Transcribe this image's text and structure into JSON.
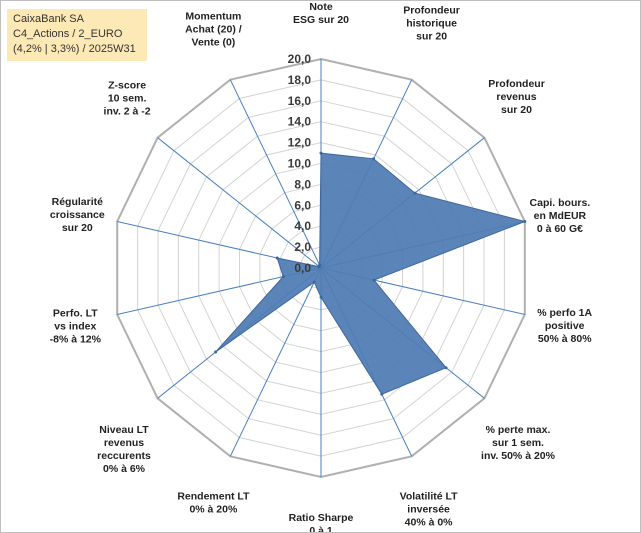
{
  "header": {
    "line1": "CaixaBank SA",
    "line2": "C4_Actions / 2_EURO",
    "line3": "(4,2% | 3,3%) / 2025W31"
  },
  "chart_data": {
    "type": "radar",
    "r_min": 0,
    "r_max": 20,
    "ticks": [
      "0,0",
      "2,0",
      "4,0",
      "6,0",
      "8,0",
      "10,0",
      "12,0",
      "14,0",
      "16,0",
      "18,0",
      "20,0"
    ],
    "axes": [
      [
        "Note",
        "ESG sur 20"
      ],
      [
        "Profondeur",
        "historique",
        "sur 20"
      ],
      [
        "Profondeur",
        "revenus",
        "sur 20"
      ],
      [
        "Capi. bours.",
        "en MdEUR",
        "0 à 60 G€"
      ],
      [
        "% perfo 1A",
        "positive",
        "50% à 80%"
      ],
      [
        "% perte max.",
        "sur 1 sem.",
        "inv. 50% à 20%"
      ],
      [
        "Volatilité LT",
        "inversée",
        "40% à 0%"
      ],
      [
        "Ratio Sharpe",
        "0 à 1"
      ],
      [
        "Rendement LT",
        "0% à 20%"
      ],
      [
        "Niveau LT",
        "revenus",
        "reccurents",
        "0% à 6%"
      ],
      [
        "Perfo. LT",
        "vs index",
        "-8% à 12%"
      ],
      [
        "Régularité",
        "croissance",
        "sur 20"
      ],
      [
        "Z-score",
        "10 sem.",
        "inv. 2 à -2"
      ],
      [
        "Momentum",
        "Achat (20) /",
        "Vente (0)"
      ]
    ],
    "values": [
      11.0,
      11.6,
      11.5,
      20.0,
      5.2,
      15.3,
      13.4,
      2.8,
      1.5,
      12.9,
      3.7,
      4.3,
      0.2,
      0.3
    ],
    "grid": true,
    "legend": "none",
    "colors": {
      "fill": "#4f7cb4",
      "stroke": "#3d679b",
      "spokes": "#4a7ec0",
      "rings": "#d3d3d3",
      "outer_ring": "#b0b0b0"
    }
  }
}
